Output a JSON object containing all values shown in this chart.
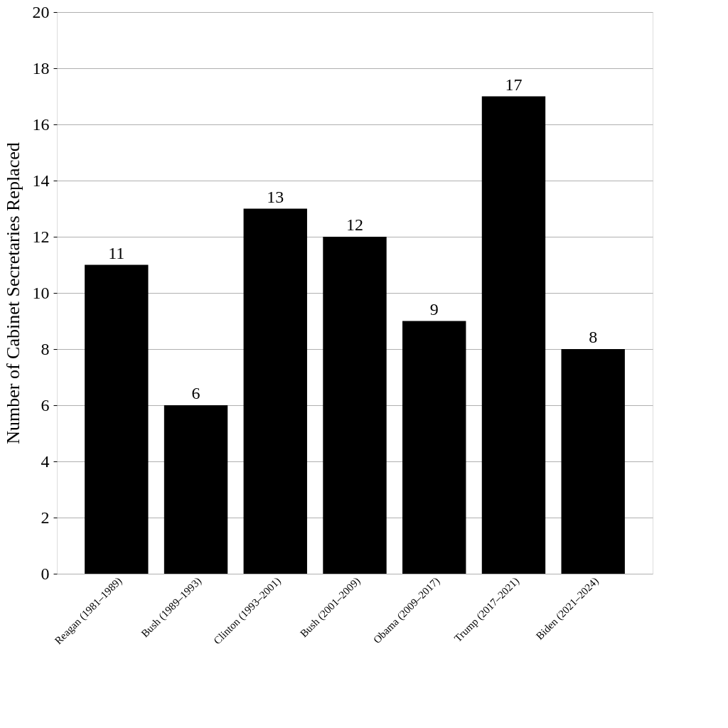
{
  "chart_data": {
    "type": "bar",
    "ylabel": "Number of Cabinet Secretaries Replaced",
    "categories": [
      "Reagan (1981–1989)",
      "Bush (1989–1993)",
      "Clinton (1993–2001)",
      "Bush (2001–2009)",
      "Obama (2009–2017)",
      "Trump (2017–2021)",
      "Biden (2021–2024)"
    ],
    "values": [
      11,
      6,
      13,
      12,
      9,
      17,
      8
    ],
    "color": "#000000",
    "ylim": [
      0,
      20
    ],
    "yticks": [
      0,
      2,
      4,
      6,
      8,
      10,
      12,
      14,
      16,
      18,
      20
    ],
    "grid": "y",
    "data_labels": true
  }
}
